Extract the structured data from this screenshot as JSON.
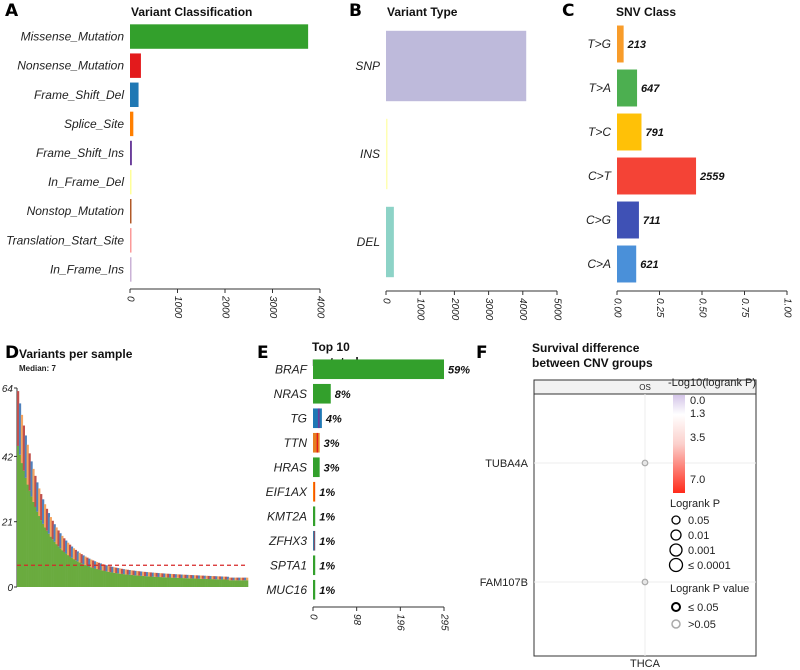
{
  "chart_data": [
    {
      "panel": "A",
      "type": "bar",
      "orientation": "horizontal",
      "title": "Variant Classification",
      "categories": [
        "Missense_Mutation",
        "Nonsense_Mutation",
        "Frame_Shift_Del",
        "Splice_Site",
        "Frame_Shift_Ins",
        "In_Frame_Del",
        "Nonstop_Mutation",
        "Translation_Start_Site",
        "In_Frame_Ins"
      ],
      "values": [
        3750,
        230,
        180,
        70,
        40,
        15,
        5,
        3,
        2
      ],
      "colors": [
        "#33a02c",
        "#e31a1c",
        "#1f78b4",
        "#ff7f00",
        "#6a3d9a",
        "#ffff99",
        "#b15928",
        "#fb9a99",
        "#cab2d6"
      ],
      "xlim": [
        0,
        4000
      ],
      "xticks": [
        "0",
        "1000",
        "2000",
        "3000",
        "4000"
      ]
    },
    {
      "panel": "B",
      "type": "bar",
      "orientation": "horizontal",
      "title": "Variant Type",
      "categories": [
        "SNP",
        "INS",
        "DEL"
      ],
      "values": [
        4100,
        30,
        230
      ],
      "colors": [
        "#bebadb",
        "#ffffb3",
        "#8dd3c7"
      ],
      "xlim": [
        0,
        5000
      ],
      "xticks": [
        "0",
        "1000",
        "2000",
        "3000",
        "4000",
        "5000"
      ]
    },
    {
      "panel": "C",
      "type": "bar",
      "orientation": "horizontal",
      "title": "SNV Class",
      "categories": [
        "T>G",
        "T>A",
        "T>C",
        "C>T",
        "C>G",
        "C>A"
      ],
      "values": [
        213,
        647,
        791,
        2559,
        711,
        621
      ],
      "value_labels": [
        "213",
        "647",
        "791",
        "2559",
        "711",
        "621"
      ],
      "fractions": [
        0.039,
        0.118,
        0.144,
        0.465,
        0.129,
        0.113
      ],
      "colors": [
        "#f89c2a",
        "#4caf50",
        "#ffc107",
        "#f44336",
        "#3f51b5",
        "#4a90d9"
      ],
      "xlim": [
        0,
        1
      ],
      "xticks": [
        "0.00",
        "0.25",
        "0.50",
        "0.75",
        "1.00"
      ]
    },
    {
      "panel": "D",
      "type": "bar",
      "title": "Variants per sample",
      "subtitle": "Median: 7",
      "median": 7,
      "ylim": [
        0,
        64
      ],
      "yticks": [
        "0",
        "21",
        "42",
        "64"
      ],
      "n_samples": 120
    },
    {
      "panel": "E",
      "type": "bar",
      "orientation": "horizontal",
      "title_line1": "Top 10",
      "title_line2": "mutated genes",
      "categories": [
        "BRAF",
        "NRAS",
        "TG",
        "TTN",
        "HRAS",
        "EIF1AX",
        "KMT2A",
        "ZFHX3",
        "SPTA1",
        "MUC16"
      ],
      "values": [
        295,
        40,
        20,
        15,
        15,
        5,
        5,
        5,
        5,
        5
      ],
      "percent_labels": [
        "59%",
        "8%",
        "4%",
        "3%",
        "3%",
        "1%",
        "1%",
        "1%",
        "1%",
        "1%"
      ],
      "colors": [
        "#33a02c",
        "#33a02c",
        "#1f78b4",
        "#e67e22",
        "#33a02c",
        "#ff7f00",
        "#33a02c",
        "#3a7ca5",
        "#33a02c",
        "#33a02c"
      ],
      "xlim": [
        0,
        295
      ],
      "xticks": [
        "0",
        "98",
        "196",
        "295"
      ]
    },
    {
      "panel": "F",
      "type": "scatter",
      "title_line1": "Survival difference",
      "title_line2": "between CNV groups",
      "facet": "OS",
      "genes": [
        "TUBA4A",
        "FAM107B"
      ],
      "cancer": "THCA",
      "points": [
        {
          "gene": "TUBA4A",
          "cancer": "THCA",
          "size_class": "0.05",
          "significant": false
        },
        {
          "gene": "FAM107B",
          "cancer": "THCA",
          "size_class": "0.05",
          "significant": false
        }
      ],
      "legend_color_title": "-Log10(logrank P)",
      "legend_color_values": [
        "0.0",
        "1.3",
        "3.5",
        "7.0"
      ],
      "legend_size_title": "Logrank P",
      "legend_size_values": [
        "0.05",
        "0.01",
        "0.001",
        "≤ 0.0001"
      ],
      "legend_sig_title": "Logrank P value",
      "legend_sig_values": [
        "≤ 0.05",
        ">0.05"
      ]
    }
  ],
  "panel_labels": [
    "A",
    "B",
    "C",
    "D",
    "E",
    "F"
  ]
}
